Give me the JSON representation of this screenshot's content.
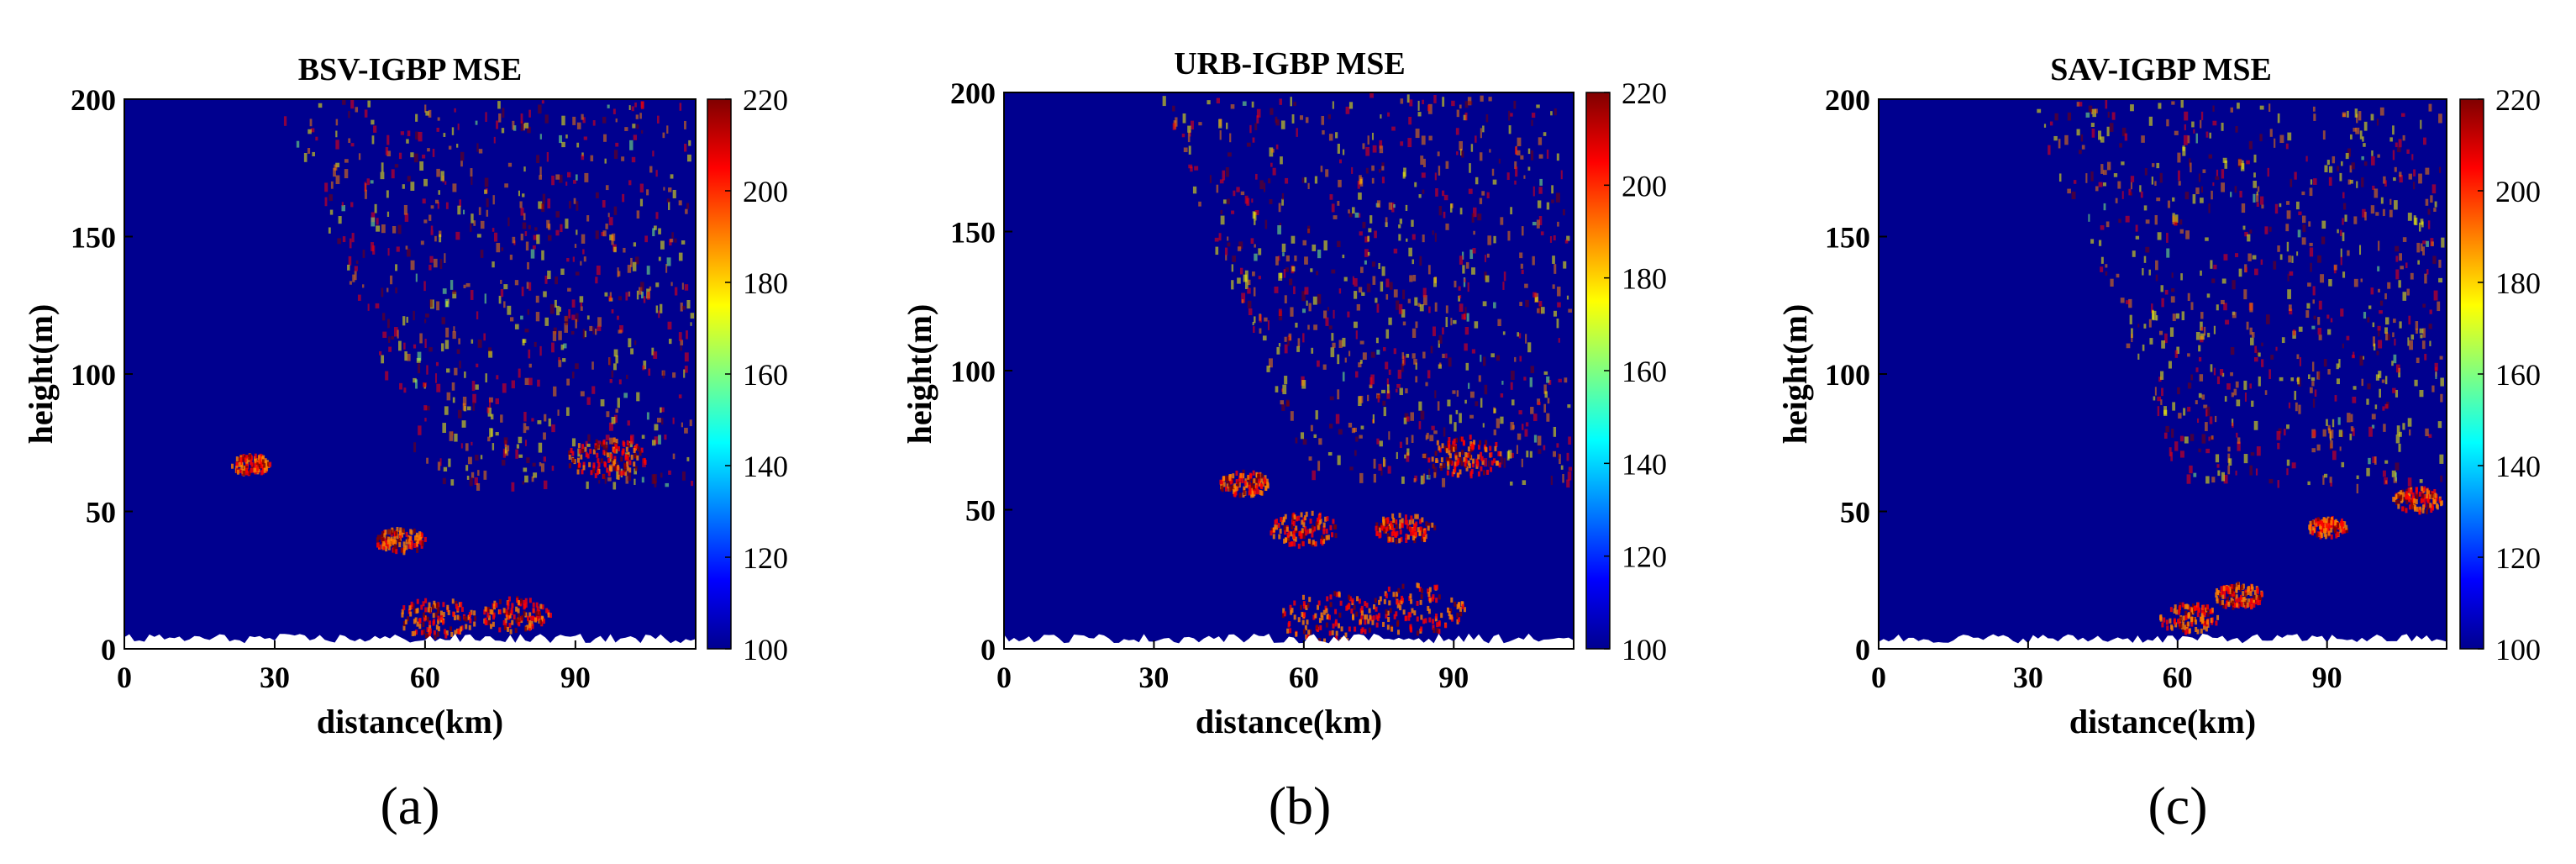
{
  "colormap": [
    "#00008f",
    "#0000ff",
    "#0080ff",
    "#00ffff",
    "#80ff80",
    "#ffff00",
    "#ff8000",
    "#ff0000",
    "#800000"
  ],
  "chart_data": [
    {
      "type": "heatmap",
      "panel_label": "(a)",
      "title": "BSV-IGBP MSE",
      "xlabel": "distance(km)",
      "ylabel": "height(m)",
      "xlim": [
        0,
        114
      ],
      "ylim": [
        0,
        200
      ],
      "xticks": [
        0,
        30,
        60,
        90
      ],
      "yticks": [
        0,
        50,
        100,
        150,
        200
      ],
      "colorbar": {
        "min": 100,
        "max": 220,
        "ticks": [
          100,
          120,
          140,
          160,
          180,
          200,
          220
        ]
      },
      "grid": false
    },
    {
      "type": "heatmap",
      "panel_label": "(b)",
      "title": "URB-IGBP MSE",
      "xlabel": "distance(km)",
      "ylabel": "height(m)",
      "xlim": [
        0,
        114
      ],
      "ylim": [
        0,
        200
      ],
      "xticks": [
        0,
        30,
        60,
        90
      ],
      "yticks": [
        0,
        50,
        100,
        150,
        200
      ],
      "colorbar": {
        "min": 100,
        "max": 220,
        "ticks": [
          100,
          120,
          140,
          160,
          180,
          200,
          220
        ]
      },
      "grid": false
    },
    {
      "type": "heatmap",
      "panel_label": "(c)",
      "title": "SAV-IGBP MSE",
      "xlabel": "distance(km)",
      "ylabel": "height(m)",
      "xlim": [
        0,
        114
      ],
      "ylim": [
        0,
        200
      ],
      "xticks": [
        0,
        30,
        60,
        90
      ],
      "yticks": [
        0,
        50,
        100,
        150,
        200
      ],
      "colorbar": {
        "min": 100,
        "max": 220,
        "ticks": [
          100,
          120,
          140,
          160,
          180,
          200,
          220
        ]
      },
      "grid": false
    }
  ]
}
